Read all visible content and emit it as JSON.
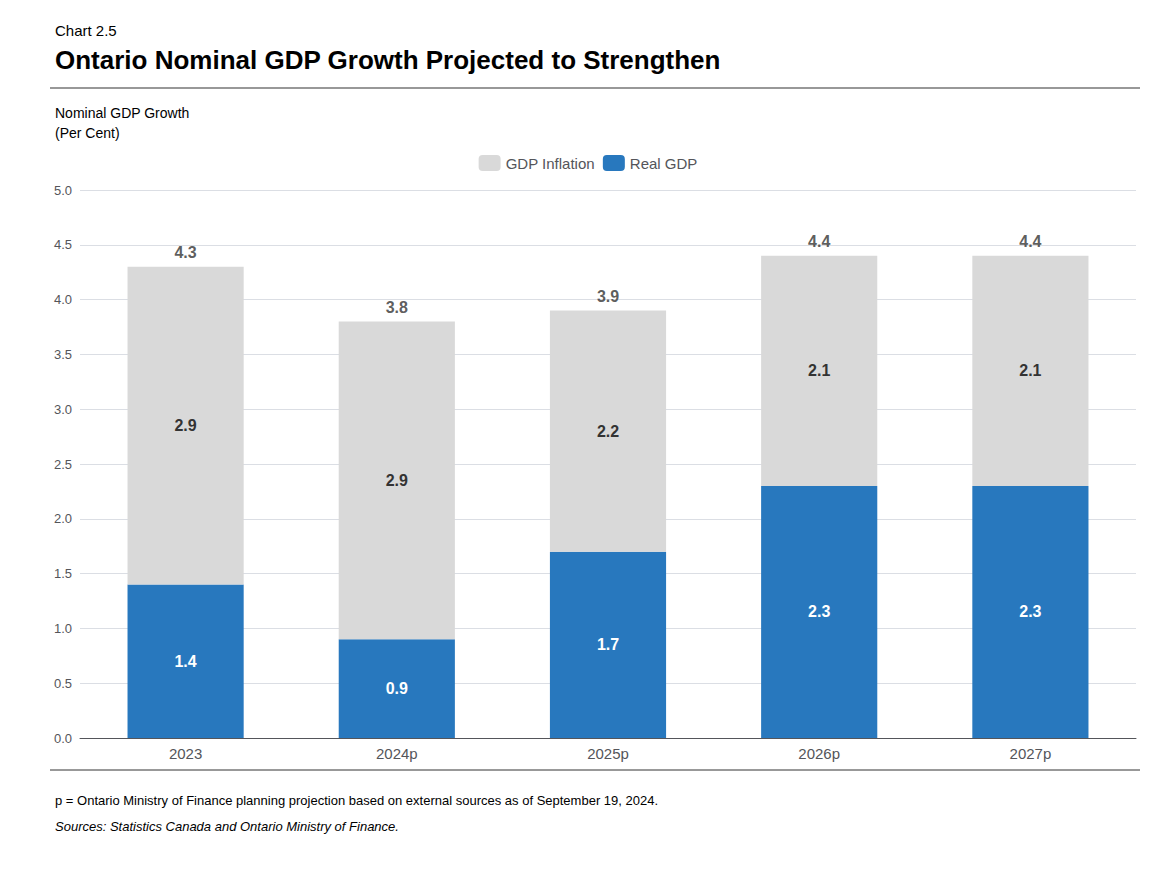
{
  "chart_data": {
    "type": "bar",
    "subtitle": "Chart 2.5",
    "title": "Ontario Nominal GDP Growth Projected to Strengthen",
    "ylabel": [
      "Nominal GDP Growth",
      "(Per Cent)"
    ],
    "annotations": [
      "p = Ontario Ministry of Finance planning projection based on external sources as of September 19, 2024.",
      "Sources: Statistics Canada and Ontario Ministry of Finance."
    ],
    "categories": [
      "2023",
      "2024p",
      "2025p",
      "2026p",
      "2027p"
    ],
    "series": [
      {
        "name": "Real GDP",
        "color": "#2878BE",
        "values": [
          1.4,
          0.9,
          1.7,
          2.3,
          2.3
        ]
      },
      {
        "name": "GDP Inflation",
        "color": "#D9D9D9",
        "values": [
          2.9,
          2.9,
          2.2,
          2.1,
          2.1
        ]
      }
    ],
    "totals": [
      4.3,
      3.8,
      3.9,
      4.4,
      4.4
    ],
    "stacked": true,
    "data_labels": true,
    "ylim": [
      0,
      5.0
    ],
    "yticks": [
      {
        "value": 0.0,
        "label": "0.0"
      },
      0.5,
      {
        "value": 1.0,
        "label": "1.0"
      },
      1.5,
      {
        "value": 2.0,
        "label": "2.0"
      },
      2.5,
      {
        "value": 3.0,
        "label": "3.0"
      },
      3.5,
      {
        "value": 4.0,
        "label": "4.0"
      },
      4.5,
      {
        "value": 5.0,
        "label": "5.0"
      }
    ],
    "grid": true,
    "legend": "top"
  }
}
